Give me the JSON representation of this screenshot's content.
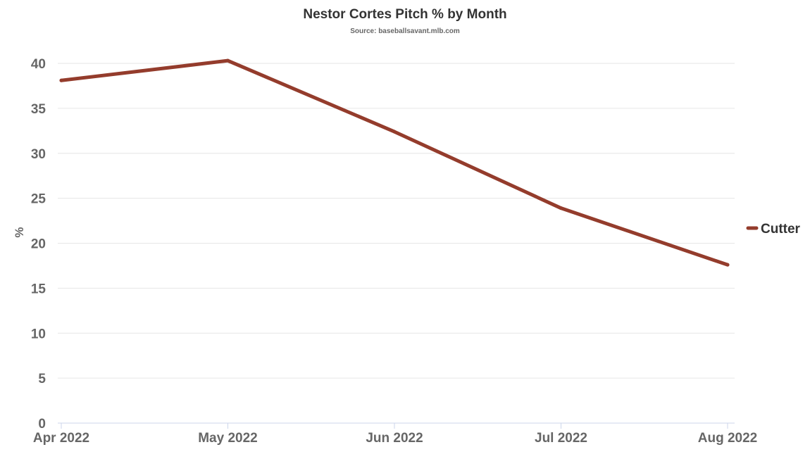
{
  "chart_data": {
    "type": "line",
    "title": "Nestor Cortes Pitch % by Month",
    "subtitle": "Source: baseballsavant.mlb.com",
    "xlabel": "",
    "ylabel": "%",
    "categories": [
      "Apr 2022",
      "May 2022",
      "Jun 2022",
      "Jul 2022",
      "Aug 2022"
    ],
    "ylim": [
      0,
      40
    ],
    "yticks": [
      0,
      5,
      10,
      15,
      20,
      25,
      30,
      35,
      40
    ],
    "grid": true,
    "legend_position": "right",
    "series": [
      {
        "name": "Cutter",
        "color": "#943c2c",
        "values": [
          38.1,
          40.3,
          32.4,
          23.9,
          17.6
        ]
      }
    ]
  }
}
